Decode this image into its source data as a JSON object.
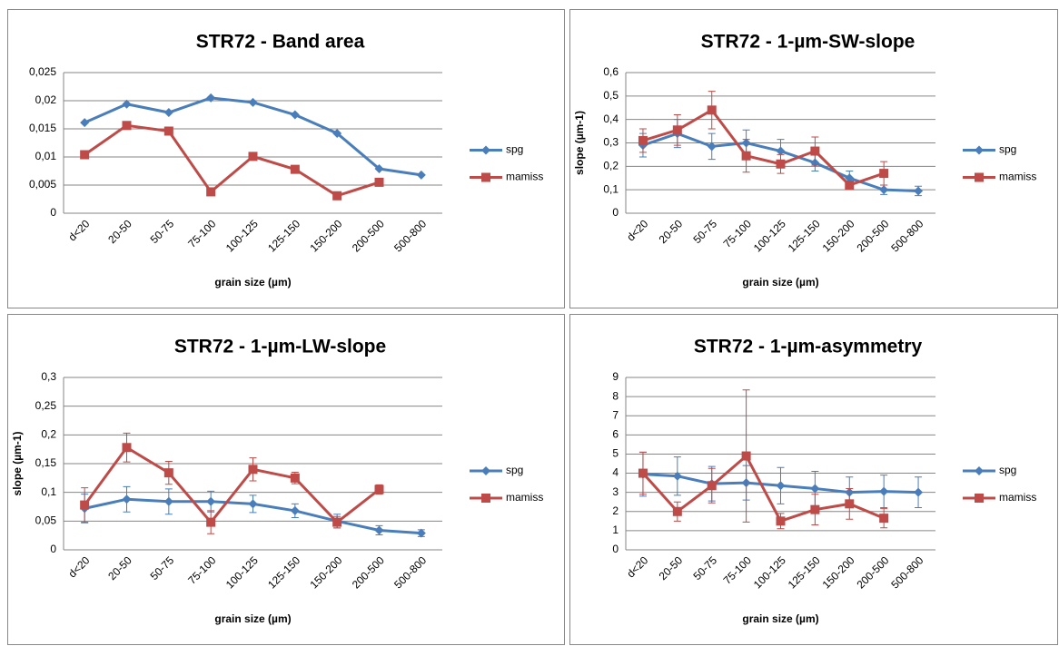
{
  "chart_data": [
    {
      "type": "line",
      "title": "STR72 - Band area",
      "x_label": "grain size (µm)",
      "categories": [
        "d<20",
        "20-50",
        "50-75",
        "75-100",
        "100-125",
        "125-150",
        "150-200",
        "200-500",
        "500-800"
      ],
      "ylim": [
        0,
        0.025
      ],
      "yticks": [
        0,
        {
          "value": 0.005,
          "label": "0,005"
        },
        {
          "value": 0.01,
          "label": "0,01"
        },
        {
          "value": 0.015,
          "label": "0,015"
        },
        {
          "value": 0.02,
          "label": "0,02"
        },
        {
          "value": 0.025,
          "label": "0,025"
        }
      ],
      "grid": true,
      "legend": "right",
      "series": [
        {
          "name": "spg",
          "color": "#4a7ebb",
          "marker": "diamond",
          "values": [
            0.0161,
            0.0194,
            0.0179,
            0.0205,
            0.0197,
            0.0175,
            0.0142,
            0.0079,
            0.0068
          ]
        },
        {
          "name": "mamiss",
          "color": "#be4b48",
          "marker": "square",
          "values": [
            0.0104,
            0.0156,
            0.0146,
            0.0038,
            0.0101,
            0.0078,
            0.0031,
            0.0055,
            null
          ]
        }
      ]
    },
    {
      "type": "line",
      "title": "STR72 - 1-µm-SW-slope",
      "x_label": "grain size (µm)",
      "y_label": "slope (µm-1)",
      "categories": [
        "d<20",
        "20-50",
        "50-75",
        "75-100",
        "100-125",
        "125-150",
        "150-200",
        "200-500",
        "500-800"
      ],
      "ylim": [
        0,
        0.6
      ],
      "yticks": [
        0,
        {
          "value": 0.1,
          "label": "0,1"
        },
        {
          "value": 0.2,
          "label": "0,2"
        },
        {
          "value": 0.3,
          "label": "0,3"
        },
        {
          "value": 0.4,
          "label": "0,4"
        },
        {
          "value": 0.5,
          "label": "0,5"
        },
        {
          "value": 0.6,
          "label": "0,6"
        }
      ],
      "grid": true,
      "legend": "right",
      "series": [
        {
          "name": "spg",
          "color": "#4a7ebb",
          "marker": "diamond",
          "values": [
            0.29,
            0.34,
            0.285,
            0.3,
            0.265,
            0.215,
            0.15,
            0.1,
            0.095
          ],
          "errors": [
            0.05,
            0.06,
            0.055,
            0.055,
            0.05,
            0.035,
            0.03,
            0.02,
            0.02
          ]
        },
        {
          "name": "mamiss",
          "color": "#be4b48",
          "marker": "square",
          "values": [
            0.31,
            0.355,
            0.44,
            0.245,
            0.21,
            0.265,
            0.12,
            0.17,
            null
          ],
          "errors": [
            0.05,
            0.065,
            0.08,
            0.07,
            0.04,
            0.06,
            0.015,
            0.05,
            null
          ]
        }
      ]
    },
    {
      "type": "line",
      "title": "STR72 - 1-µm-LW-slope",
      "x_label": "grain size (µm)",
      "y_label": "slope (µm-1)",
      "categories": [
        "d<20",
        "20-50",
        "50-75",
        "75-100",
        "100-125",
        "125-150",
        "150-200",
        "200-500",
        "500-800"
      ],
      "ylim": [
        0,
        0.3
      ],
      "yticks": [
        0,
        {
          "value": 0.05,
          "label": "0,05"
        },
        {
          "value": 0.1,
          "label": "0,1"
        },
        {
          "value": 0.15,
          "label": "0,15"
        },
        {
          "value": 0.2,
          "label": "0,2"
        },
        {
          "value": 0.25,
          "label": "0,25"
        },
        {
          "value": 0.3,
          "label": "0,3"
        }
      ],
      "grid": true,
      "legend": "right",
      "series": [
        {
          "name": "spg",
          "color": "#4a7ebb",
          "marker": "diamond",
          "values": [
            0.072,
            0.088,
            0.084,
            0.084,
            0.08,
            0.068,
            0.05,
            0.034,
            0.029
          ],
          "errors": [
            0.025,
            0.022,
            0.022,
            0.018,
            0.015,
            0.012,
            0.012,
            0.008,
            0.006
          ]
        },
        {
          "name": "mamiss",
          "color": "#be4b48",
          "marker": "square",
          "values": [
            0.078,
            0.178,
            0.134,
            0.048,
            0.14,
            0.125,
            0.048,
            0.105,
            null
          ],
          "errors": [
            0.03,
            0.025,
            0.02,
            0.02,
            0.02,
            0.01,
            0.01,
            0.008,
            null
          ]
        }
      ]
    },
    {
      "type": "line",
      "title": "STR72 - 1-µm-asymmetry",
      "x_label": "grain size (µm)",
      "categories": [
        "d<20",
        "20-50",
        "50-75",
        "75-100",
        "100-125",
        "125-150",
        "150-200",
        "200-500",
        "500-800"
      ],
      "ylim": [
        0,
        9
      ],
      "yticks": [
        0,
        1,
        2,
        3,
        4,
        5,
        6,
        7,
        8,
        9
      ],
      "grid": true,
      "legend": "right",
      "series": [
        {
          "name": "spg",
          "color": "#4a7ebb",
          "marker": "diamond",
          "values": [
            3.95,
            3.85,
            3.45,
            3.5,
            3.35,
            3.2,
            3.0,
            3.05,
            3.0
          ],
          "errors": [
            1.15,
            1.0,
            0.9,
            0.9,
            0.95,
            0.9,
            0.8,
            0.85,
            0.8
          ]
        },
        {
          "name": "mamiss",
          "color": "#be4b48",
          "marker": "square",
          "values": [
            4.0,
            2.0,
            3.35,
            4.9,
            1.5,
            2.1,
            2.4,
            1.65,
            null
          ],
          "errors": [
            1.1,
            0.5,
            0.9,
            3.45,
            0.4,
            0.8,
            0.8,
            0.5,
            null
          ]
        }
      ]
    }
  ]
}
